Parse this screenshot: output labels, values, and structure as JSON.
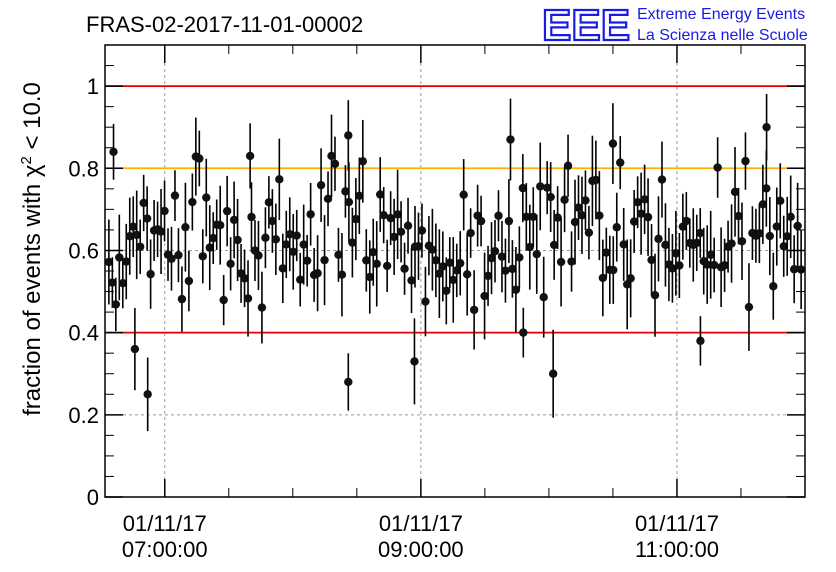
{
  "chart_data": {
    "type": "scatter",
    "title": "FRAS-02-2017-11-01-00002",
    "ylabel": {
      "prefix": "fraction of events with ",
      "symbol": "χ",
      "sup": "2",
      "suffix": " < 10.0"
    },
    "ylim": [
      0,
      1.1
    ],
    "xlim": [
      "2017-11-01 06:32",
      "2017-11-01 12:00"
    ],
    "yticks": [
      "0",
      "0.2",
      "0.4",
      "0.6",
      "0.8",
      "1"
    ],
    "xticks": [
      {
        "time": "2017-11-01 07:00",
        "date_label": "01/11/17",
        "time_label": "07:00:00"
      },
      {
        "time": "2017-11-01 09:00",
        "date_label": "01/11/17",
        "time_label": "09:00:00"
      },
      {
        "time": "2017-11-01 11:00",
        "date_label": "01/11/17",
        "time_label": "11:00:00"
      }
    ],
    "reference_lines": [
      {
        "y": 1.0,
        "color": "#e00000"
      },
      {
        "y": 0.8,
        "color": "#ffb000"
      },
      {
        "y": 0.4,
        "color": "#e00000"
      }
    ],
    "grid": "dashed",
    "series": [
      {
        "marker_color": "#000000",
        "approx_points": 200,
        "mean_fraction": 0.62,
        "notable_points": [
          {
            "time": "2017-11-01 06:36",
            "y": 0.84
          },
          {
            "time": "2017-11-01 06:46",
            "y": 0.36
          },
          {
            "time": "2017-11-01 06:52",
            "y": 0.25
          },
          {
            "time": "2017-11-01 07:40",
            "y": 0.83
          },
          {
            "time": "2017-11-01 08:26",
            "y": 0.88
          },
          {
            "time": "2017-11-01 08:26",
            "y": 0.28
          },
          {
            "time": "2017-11-01 08:57",
            "y": 0.33
          },
          {
            "time": "2017-11-01 09:42",
            "y": 0.87
          },
          {
            "time": "2017-11-01 09:48",
            "y": 0.4
          },
          {
            "time": "2017-11-01 10:02",
            "y": 0.3
          },
          {
            "time": "2017-11-01 10:30",
            "y": 0.86
          },
          {
            "time": "2017-11-01 11:11",
            "y": 0.38
          },
          {
            "time": "2017-11-01 11:42",
            "y": 0.9
          }
        ]
      }
    ]
  },
  "logo": {
    "mark": "EEE",
    "line1": "Extreme Energy Events",
    "line2": "La Scienza nelle Scuole"
  }
}
